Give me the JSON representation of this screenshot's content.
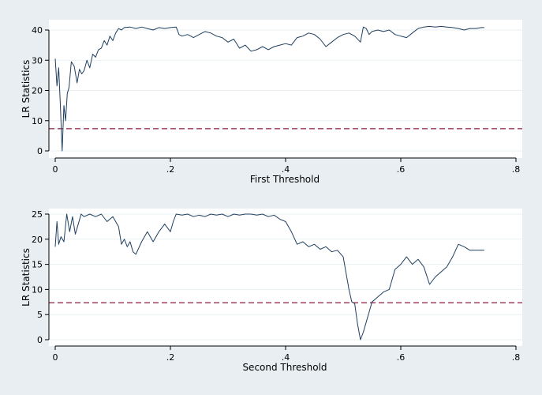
{
  "chart_data": [
    {
      "type": "line",
      "xlabel": "First Threshold",
      "ylabel": "LR Statistics",
      "xlim": [
        0,
        0.8
      ],
      "ylim": [
        0,
        42
      ],
      "xticks": [
        0,
        0.2,
        0.4,
        0.6,
        0.8
      ],
      "xtick_labels": [
        "0",
        ".2",
        ".4",
        ".6",
        ".8"
      ],
      "yticks": [
        0,
        10,
        20,
        30,
        40
      ],
      "ytick_labels": [
        "0",
        "10",
        "20",
        "30",
        "40"
      ],
      "grid": true,
      "reference_line": 7.35,
      "x": [
        0,
        0.003,
        0.006,
        0.009,
        0.012,
        0.015,
        0.018,
        0.021,
        0.024,
        0.028,
        0.033,
        0.038,
        0.042,
        0.046,
        0.05,
        0.055,
        0.06,
        0.065,
        0.07,
        0.075,
        0.08,
        0.085,
        0.09,
        0.095,
        0.1,
        0.105,
        0.11,
        0.115,
        0.12,
        0.13,
        0.14,
        0.15,
        0.16,
        0.17,
        0.18,
        0.19,
        0.2,
        0.21,
        0.215,
        0.22,
        0.23,
        0.24,
        0.25,
        0.26,
        0.27,
        0.28,
        0.29,
        0.3,
        0.31,
        0.32,
        0.33,
        0.34,
        0.35,
        0.36,
        0.37,
        0.38,
        0.39,
        0.4,
        0.41,
        0.42,
        0.43,
        0.44,
        0.45,
        0.46,
        0.47,
        0.48,
        0.49,
        0.5,
        0.51,
        0.52,
        0.53,
        0.535,
        0.54,
        0.545,
        0.55,
        0.56,
        0.57,
        0.58,
        0.59,
        0.6,
        0.61,
        0.62,
        0.63,
        0.64,
        0.65,
        0.66,
        0.67,
        0.68,
        0.69,
        0.7,
        0.71,
        0.72,
        0.73,
        0.74,
        0.745
      ],
      "y": [
        30.5,
        21.5,
        27.5,
        14.5,
        0,
        15,
        10,
        19,
        21,
        29.5,
        28,
        22.5,
        27,
        25.5,
        26.5,
        30,
        27.5,
        32,
        31,
        33.5,
        34,
        36.5,
        35,
        38,
        36.5,
        39,
        40.5,
        40,
        40.8,
        41,
        40.5,
        41,
        40.5,
        40,
        40.8,
        40.5,
        40.8,
        41,
        38.5,
        38,
        38.5,
        37.5,
        38.5,
        39.5,
        39,
        38,
        37.5,
        36,
        37,
        34,
        35,
        33,
        33.5,
        34.5,
        33.5,
        34.5,
        35,
        35.5,
        35,
        37.5,
        38,
        39,
        38.5,
        37,
        34.5,
        36,
        37.5,
        38.5,
        39,
        38,
        36,
        41,
        40.5,
        38.5,
        39.5,
        40,
        39.5,
        40,
        38.5,
        38,
        37.5,
        39,
        40.5,
        41,
        41.2,
        41,
        41.2,
        41,
        40.8,
        40.5,
        40,
        40.5,
        40.5,
        40.8,
        40.8
      ]
    },
    {
      "type": "line",
      "xlabel": "Second Threshold",
      "ylabel": "LR Statistics",
      "xlim": [
        0,
        0.8
      ],
      "ylim": [
        0,
        26
      ],
      "xticks": [
        0,
        0.2,
        0.4,
        0.6,
        0.8
      ],
      "xtick_labels": [
        "0",
        ".2",
        ".4",
        ".6",
        ".8"
      ],
      "yticks": [
        0,
        5,
        10,
        15,
        20,
        25
      ],
      "ytick_labels": [
        "0",
        "5",
        "10",
        "15",
        "20",
        "25"
      ],
      "grid": true,
      "reference_line": 7.35,
      "x": [
        0,
        0.003,
        0.006,
        0.01,
        0.015,
        0.02,
        0.025,
        0.03,
        0.035,
        0.04,
        0.045,
        0.05,
        0.06,
        0.07,
        0.08,
        0.09,
        0.1,
        0.11,
        0.115,
        0.12,
        0.125,
        0.13,
        0.135,
        0.14,
        0.15,
        0.16,
        0.17,
        0.18,
        0.19,
        0.2,
        0.205,
        0.21,
        0.22,
        0.23,
        0.24,
        0.25,
        0.26,
        0.27,
        0.28,
        0.29,
        0.3,
        0.31,
        0.32,
        0.33,
        0.34,
        0.35,
        0.36,
        0.37,
        0.38,
        0.39,
        0.4,
        0.41,
        0.42,
        0.43,
        0.44,
        0.45,
        0.46,
        0.47,
        0.48,
        0.49,
        0.5,
        0.51,
        0.515,
        0.52,
        0.525,
        0.53,
        0.535,
        0.54,
        0.545,
        0.55,
        0.56,
        0.57,
        0.58,
        0.59,
        0.6,
        0.61,
        0.62,
        0.63,
        0.64,
        0.65,
        0.66,
        0.67,
        0.68,
        0.69,
        0.7,
        0.71,
        0.72,
        0.73,
        0.74,
        0.745
      ],
      "y": [
        18.5,
        23.5,
        19,
        20.5,
        19.5,
        25,
        21.5,
        24.5,
        21,
        23,
        25,
        24.5,
        25,
        24.5,
        25,
        23.5,
        24.5,
        22.5,
        19,
        20,
        18.5,
        19.5,
        17.5,
        17,
        19.5,
        21.5,
        19.5,
        21.5,
        23,
        21.5,
        23.5,
        25,
        24.8,
        25,
        24.5,
        24.8,
        24.5,
        25,
        24.8,
        25,
        24.5,
        25,
        24.8,
        25,
        25,
        24.8,
        25,
        24.5,
        24.8,
        24,
        23.5,
        21.5,
        19,
        19.5,
        18.5,
        19,
        18,
        18.5,
        17.5,
        17.8,
        16.5,
        10,
        7.5,
        7.2,
        3,
        0,
        1.5,
        3.5,
        5.5,
        7.5,
        8.5,
        9.5,
        10,
        14,
        15,
        16.5,
        15,
        16,
        14.5,
        11,
        12.5,
        13.5,
        14.5,
        16.5,
        19,
        18.5,
        17.8,
        17.8,
        17.8,
        17.8
      ]
    }
  ],
  "colors": {
    "background": "#e8eef2",
    "plot_area": "#ffffff",
    "series_line": "#1f3f5f",
    "reference_line": "#8b1a3c",
    "grid": "#eaf0f3"
  }
}
